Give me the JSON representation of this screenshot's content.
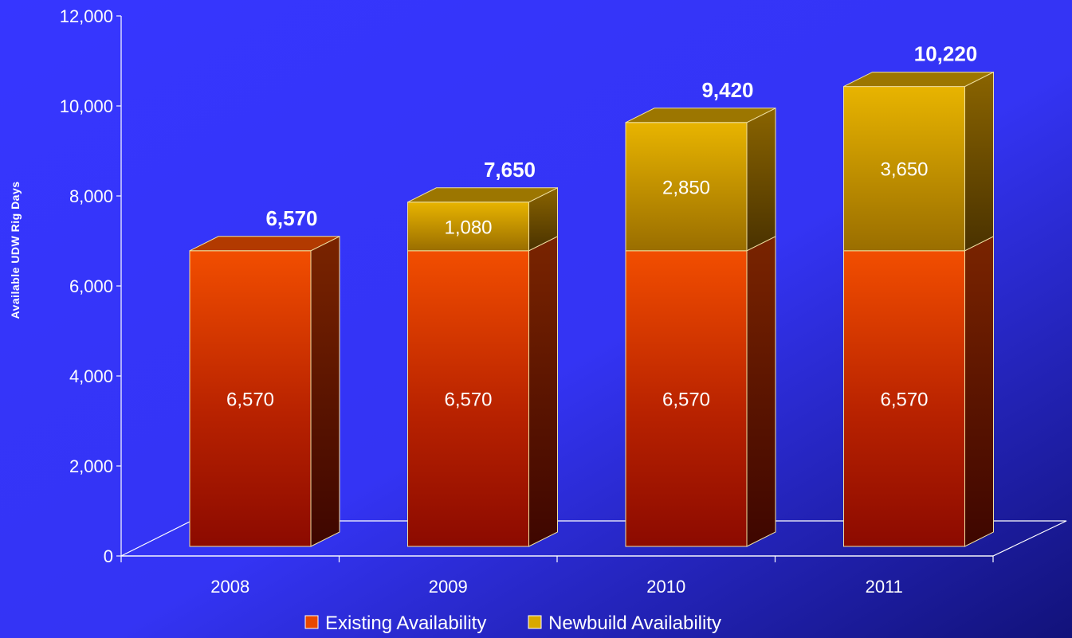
{
  "chart_data": {
    "type": "bar",
    "stacked": true,
    "three_d": true,
    "categories": [
      "2008",
      "2009",
      "2010",
      "2011"
    ],
    "series": [
      {
        "name": "Existing Availability",
        "values": [
          6570,
          6570,
          6570,
          6570
        ],
        "labels": [
          "6,570",
          "6,570",
          "6,570",
          "6,570"
        ],
        "color": "#e84800"
      },
      {
        "name": "Newbuild Availability",
        "values": [
          0,
          1080,
          2850,
          3650
        ],
        "labels": [
          "",
          "1,080",
          "2,850",
          "3,650"
        ],
        "color": "#d8a800"
      }
    ],
    "totals": [
      6570,
      7650,
      9420,
      10220
    ],
    "total_labels": [
      "6,570",
      "7,650",
      "9,420",
      "10,220"
    ],
    "ylabel": "Available UDW Rig Days",
    "xlabel": "",
    "ylim": [
      0,
      12000
    ],
    "yticks": [
      0,
      2000,
      4000,
      6000,
      8000,
      10000,
      12000
    ],
    "ytick_labels": [
      "0",
      "2,000",
      "4,000",
      "6,000",
      "8,000",
      "10,000",
      "12,000"
    ],
    "legend_position": "bottom",
    "grid": false,
    "colors": {
      "background_light": "#3a3cff",
      "background_dark": "#14147a",
      "axis": "#ffffff"
    }
  }
}
